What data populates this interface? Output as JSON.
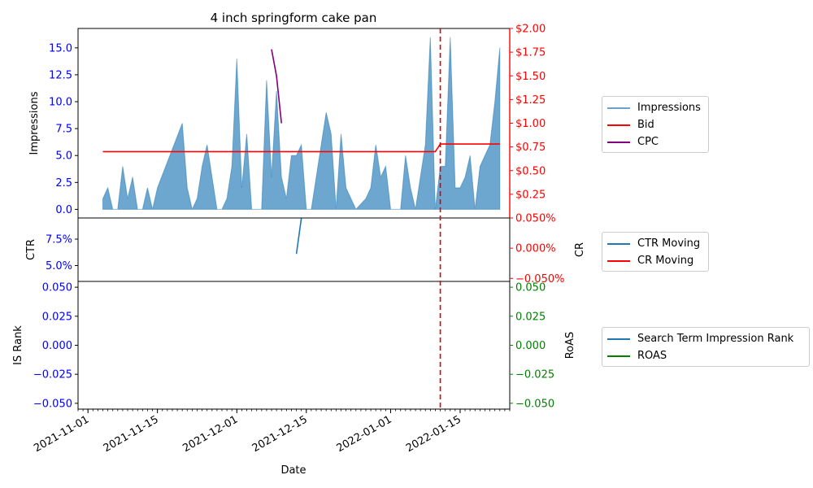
{
  "chart_data": {
    "type": "area",
    "title": "4 inch springform cake pan",
    "xlabel": "Date",
    "x_ticks": [
      "2021-11-01",
      "2021-11-15",
      "2021-12-01",
      "2021-12-15",
      "2022-01-01",
      "2022-01-15"
    ],
    "xlim": [
      "2021-10-30",
      "2022-01-25"
    ],
    "marker_date": "2022-01-11",
    "panels": [
      {
        "ylabel": "Impressions",
        "ylim": [
          -0.8,
          16.8
        ],
        "yticks": [
          "0.0",
          "2.5",
          "5.0",
          "7.5",
          "10.0",
          "12.5",
          "15.0"
        ],
        "ytick_values": [
          0,
          2.5,
          5,
          7.5,
          10,
          12.5,
          15
        ],
        "y2label": "",
        "y2lim": [
          0,
          2.0
        ],
        "y2ticks": [
          "$0.25",
          "$0.50",
          "$0.75",
          "$1.00",
          "$1.25",
          "$1.50",
          "$1.75",
          "$2.00"
        ],
        "y2tick_values": [
          0.25,
          0.5,
          0.75,
          1.0,
          1.25,
          1.5,
          1.75,
          2.0
        ],
        "series": [
          {
            "name": "Impressions",
            "axis": "left",
            "style": "area",
            "color": "#1f77b4",
            "points": [
              [
                "2021-11-04",
                1
              ],
              [
                "2021-11-05",
                2
              ],
              [
                "2021-11-06",
                0
              ],
              [
                "2021-11-07",
                0
              ],
              [
                "2021-11-08",
                4
              ],
              [
                "2021-11-09",
                1
              ],
              [
                "2021-11-10",
                3
              ],
              [
                "2021-11-11",
                0
              ],
              [
                "2021-11-12",
                0
              ],
              [
                "2021-11-13",
                2
              ],
              [
                "2021-11-14",
                0
              ],
              [
                "2021-11-15",
                2
              ],
              [
                "2021-11-20",
                8
              ],
              [
                "2021-11-21",
                2
              ],
              [
                "2021-11-22",
                0
              ],
              [
                "2021-11-23",
                1
              ],
              [
                "2021-11-24",
                4
              ],
              [
                "2021-11-25",
                6
              ],
              [
                "2021-11-27",
                0
              ],
              [
                "2021-11-28",
                0
              ],
              [
                "2021-11-29",
                1
              ],
              [
                "2021-11-30",
                4
              ],
              [
                "2021-12-01",
                14
              ],
              [
                "2021-12-02",
                2
              ],
              [
                "2021-12-03",
                7
              ],
              [
                "2021-12-04",
                0
              ],
              [
                "2021-12-06",
                0
              ],
              [
                "2021-12-07",
                12
              ],
              [
                "2021-12-08",
                3
              ],
              [
                "2021-12-09",
                11
              ],
              [
                "2021-12-10",
                3
              ],
              [
                "2021-12-11",
                1
              ],
              [
                "2021-12-12",
                5
              ],
              [
                "2021-12-13",
                5
              ],
              [
                "2021-12-14",
                6
              ],
              [
                "2021-12-15",
                0
              ],
              [
                "2021-12-16",
                0
              ],
              [
                "2021-12-17",
                3
              ],
              [
                "2021-12-19",
                9
              ],
              [
                "2021-12-20",
                7
              ],
              [
                "2021-12-21",
                0
              ],
              [
                "2021-12-22",
                7
              ],
              [
                "2021-12-23",
                2
              ],
              [
                "2021-12-25",
                0
              ],
              [
                "2021-12-27",
                1
              ],
              [
                "2021-12-28",
                2
              ],
              [
                "2021-12-29",
                6
              ],
              [
                "2021-12-30",
                3
              ],
              [
                "2021-12-31",
                4
              ],
              [
                "2022-01-01",
                0
              ],
              [
                "2022-01-03",
                0
              ],
              [
                "2022-01-04",
                5
              ],
              [
                "2022-01-05",
                2
              ],
              [
                "2022-01-06",
                0
              ],
              [
                "2022-01-08",
                6
              ],
              [
                "2022-01-09",
                16
              ],
              [
                "2022-01-10",
                0
              ],
              [
                "2022-01-11",
                4
              ],
              [
                "2022-01-12",
                4
              ],
              [
                "2022-01-13",
                16
              ],
              [
                "2022-01-14",
                2
              ],
              [
                "2022-01-15",
                2
              ],
              [
                "2022-01-16",
                3
              ],
              [
                "2022-01-17",
                5
              ],
              [
                "2022-01-18",
                0
              ],
              [
                "2022-01-19",
                4
              ],
              [
                "2022-01-21",
                6
              ],
              [
                "2022-01-22",
                10
              ],
              [
                "2022-01-23",
                15
              ]
            ]
          },
          {
            "name": "Bid",
            "axis": "right",
            "style": "line",
            "color": "#ff0000",
            "points": [
              [
                "2021-11-04",
                0.7
              ],
              [
                "2022-01-10",
                0.7
              ],
              [
                "2022-01-11",
                0.78
              ],
              [
                "2022-01-23",
                0.78
              ]
            ]
          },
          {
            "name": "CPC",
            "axis": "right",
            "style": "line",
            "color": "#800080",
            "points": [
              [
                "2021-12-08",
                1.78
              ],
              [
                "2021-12-09",
                1.5
              ],
              [
                "2021-12-10",
                1.0
              ]
            ]
          }
        ]
      },
      {
        "ylabel": "CTR",
        "ylim": [
          0.035,
          0.095
        ],
        "yticks": [
          "5.0%",
          "7.5%"
        ],
        "ytick_values": [
          0.05,
          0.075
        ],
        "y2label": "CR",
        "y2lim": [
          -0.055,
          0.05
        ],
        "y2ticks": [
          "−0.050%",
          "0.000%",
          "0.050%"
        ],
        "y2tick_values": [
          -0.05,
          0.0,
          0.05
        ],
        "series": [
          {
            "name": "CTR Moving",
            "axis": "left",
            "style": "line",
            "color": "#1f77b4",
            "points": [
              [
                "2021-12-13",
                0.061
              ],
              [
                "2021-12-14",
                0.095
              ]
            ]
          },
          {
            "name": "CR Moving",
            "axis": "right",
            "style": "line",
            "color": "#ff0000",
            "points": []
          }
        ]
      },
      {
        "ylabel": "IS Rank",
        "ylim": [
          -0.055,
          0.055
        ],
        "yticks": [
          "−0.050",
          "−0.025",
          "0.000",
          "0.025",
          "0.050"
        ],
        "ytick_values": [
          -0.05,
          -0.025,
          0.0,
          0.025,
          0.05
        ],
        "y2label": "RoAS",
        "y2lim": [
          -0.055,
          0.055
        ],
        "y2ticks": [
          "−0.050",
          "−0.025",
          "0.000",
          "0.025",
          "0.050"
        ],
        "y2tick_values": [
          -0.05,
          -0.025,
          0.0,
          0.025,
          0.05
        ],
        "series": [
          {
            "name": "Search Term Impression Rank",
            "axis": "left",
            "style": "line",
            "color": "#1f77b4",
            "points": []
          },
          {
            "name": "ROAS",
            "axis": "right",
            "style": "line",
            "color": "#008000",
            "points": []
          }
        ]
      }
    ],
    "colors": {
      "left_axis": "#0000ff",
      "cr_axis": "#ff0000",
      "roas_axis": "#008000",
      "marker": "#dd0000"
    }
  }
}
